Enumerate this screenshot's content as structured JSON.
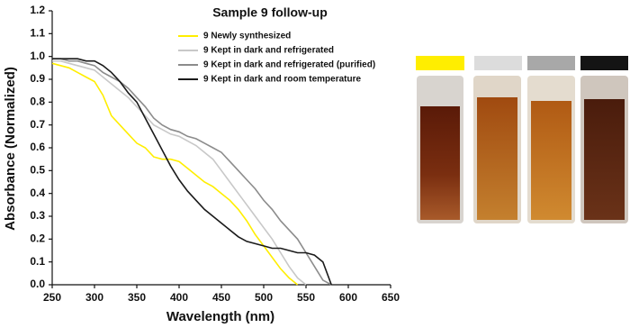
{
  "chart_data": {
    "type": "line",
    "title": "Sample 9 follow-up",
    "x_label": "Wavelength (nm)",
    "y_label": "Absorbance (Normalized)",
    "x": [
      250,
      260,
      270,
      280,
      290,
      300,
      310,
      320,
      330,
      340,
      350,
      360,
      370,
      380,
      390,
      400,
      410,
      420,
      430,
      440,
      450,
      460,
      470,
      480,
      490,
      500,
      510,
      520,
      530,
      540,
      550,
      560,
      570,
      580
    ],
    "series": [
      {
        "name": "9 Newly synthesized",
        "color": "#ffee00",
        "values": [
          0.97,
          0.96,
          0.95,
          0.93,
          0.91,
          0.89,
          0.83,
          0.74,
          0.7,
          0.66,
          0.62,
          0.6,
          0.56,
          0.55,
          0.55,
          0.54,
          0.51,
          0.48,
          0.45,
          0.43,
          0.4,
          0.37,
          0.33,
          0.28,
          0.22,
          0.17,
          0.12,
          0.07,
          0.03,
          0.0,
          null,
          null,
          null,
          null
        ]
      },
      {
        "name": "9 Kept in dark and refrigerated",
        "color": "#c8c8c8",
        "values": [
          0.98,
          0.98,
          0.97,
          0.96,
          0.95,
          0.94,
          0.91,
          0.88,
          0.85,
          0.82,
          0.78,
          0.74,
          0.7,
          0.68,
          0.66,
          0.65,
          0.63,
          0.61,
          0.58,
          0.55,
          0.5,
          0.45,
          0.4,
          0.35,
          0.3,
          0.25,
          0.2,
          0.14,
          0.08,
          0.03,
          0.0,
          null,
          null,
          null
        ]
      },
      {
        "name": "9 Kept in dark and refrigerated (purified)",
        "color": "#8c8c8c",
        "values": [
          0.99,
          0.99,
          0.98,
          0.98,
          0.97,
          0.96,
          0.93,
          0.91,
          0.89,
          0.86,
          0.82,
          0.78,
          0.73,
          0.7,
          0.68,
          0.67,
          0.65,
          0.64,
          0.62,
          0.6,
          0.58,
          0.54,
          0.5,
          0.46,
          0.42,
          0.37,
          0.33,
          0.28,
          0.24,
          0.2,
          0.14,
          0.08,
          0.02,
          0.0
        ]
      },
      {
        "name": "9 Kept in dark and room temperature",
        "color": "#1a1a1a",
        "values": [
          0.99,
          0.99,
          0.99,
          0.99,
          0.98,
          0.98,
          0.96,
          0.93,
          0.89,
          0.84,
          0.8,
          0.73,
          0.66,
          0.59,
          0.52,
          0.46,
          0.41,
          0.37,
          0.33,
          0.3,
          0.27,
          0.24,
          0.21,
          0.19,
          0.18,
          0.17,
          0.16,
          0.16,
          0.15,
          0.14,
          0.14,
          0.13,
          0.1,
          0.0
        ]
      }
    ],
    "xlim": [
      250,
      650
    ],
    "xticks": [
      250,
      300,
      350,
      400,
      450,
      500,
      550,
      600,
      650
    ],
    "ylim": [
      0,
      1.2
    ],
    "yticks": [
      {
        "value": 0,
        "label": "0.0"
      },
      0.1,
      0.2,
      0.3,
      0.4,
      0.5,
      0.6,
      0.7,
      0.8,
      0.9,
      {
        "value": 1,
        "label": "1.0"
      },
      1.1,
      1.2
    ],
    "grid": false,
    "legend": "top"
  }
}
